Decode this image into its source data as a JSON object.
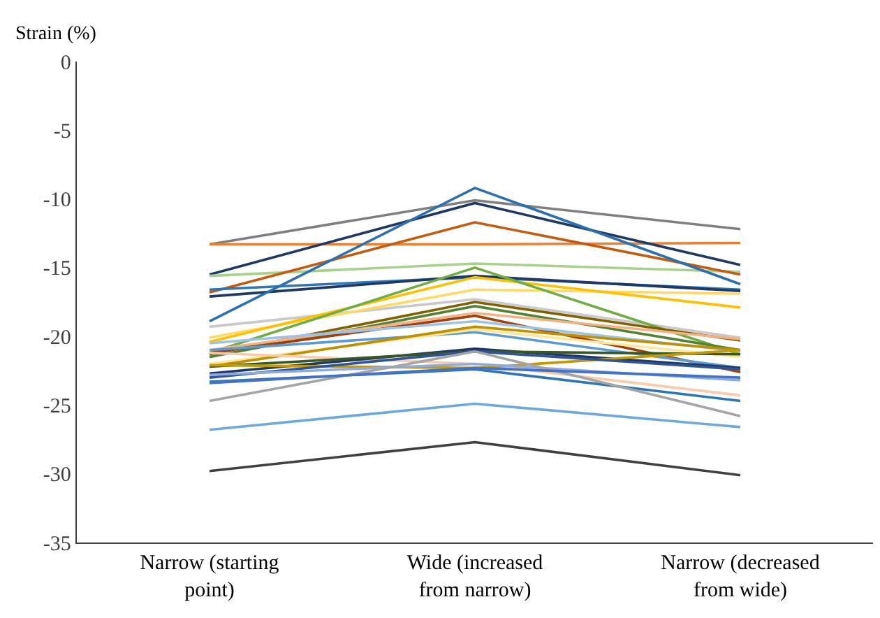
{
  "chart_data": {
    "type": "line",
    "ylabel": "Strain (%)",
    "categories": [
      "Narrow (starting point)",
      "Wide (increased from narrow)",
      "Narrow (decreased from wide)"
    ],
    "ylim": [
      -35,
      0
    ],
    "yticks": [
      0,
      -5,
      -10,
      -15,
      -20,
      -25,
      -30,
      -35
    ],
    "grid": false,
    "marker": "none",
    "line_style": "solid",
    "series": [
      {
        "color": "#7f7f7f",
        "values": [
          -13.3,
          -10.1,
          -12.2
        ]
      },
      {
        "color": "#ed7d31",
        "values": [
          -13.3,
          -13.3,
          -13.2
        ]
      },
      {
        "color": "#1f3864",
        "values": [
          -15.5,
          -10.3,
          -14.8
        ]
      },
      {
        "color": "#a9d18e",
        "values": [
          -15.6,
          -14.7,
          -15.3
        ]
      },
      {
        "color": "#c55a11",
        "values": [
          -16.8,
          -11.7,
          -15.5
        ]
      },
      {
        "color": "#2e75b6",
        "values": [
          -16.6,
          -15.7,
          -16.6
        ]
      },
      {
        "color": "#203864",
        "values": [
          -17.1,
          -15.6,
          -16.7
        ]
      },
      {
        "color": "#2e6fad",
        "values": [
          -18.9,
          -9.2,
          -16.2
        ]
      },
      {
        "color": "#c9c9c9",
        "values": [
          -19.3,
          -17.3,
          -20.1
        ]
      },
      {
        "color": "#ffd966",
        "values": [
          -20.1,
          -16.6,
          -16.9
        ]
      },
      {
        "color": "#ffc000",
        "values": [
          -20.4,
          -15.7,
          -17.9
        ]
      },
      {
        "color": "#70ad47",
        "values": [
          -21.2,
          -15.0,
          -21.3
        ]
      },
      {
        "color": "#806000",
        "values": [
          -21.3,
          -17.5,
          -20.3
        ]
      },
      {
        "color": "#548235",
        "values": [
          -21.5,
          -17.8,
          -21.0
        ]
      },
      {
        "color": "#a0410d",
        "values": [
          -21.2,
          -18.5,
          -22.6
        ]
      },
      {
        "color": "#f4b183",
        "values": [
          -21.0,
          -18.3,
          -20.2
        ]
      },
      {
        "color": "#9dc3e6",
        "values": [
          -20.5,
          -18.9,
          -21.1
        ]
      },
      {
        "color": "#5b9bd5",
        "values": [
          -21.0,
          -19.7,
          -22.3
        ]
      },
      {
        "color": "#ffe699",
        "values": [
          -22.0,
          -19.5,
          -21.5
        ]
      },
      {
        "color": "#bf9000",
        "values": [
          -22.2,
          -19.3,
          -21.0
        ]
      },
      {
        "color": "#f8cbad",
        "values": [
          -21.2,
          -22.0,
          -24.3
        ]
      },
      {
        "color": "#203864",
        "values": [
          -22.7,
          -20.9,
          -22.3
        ]
      },
      {
        "color": "#385723",
        "values": [
          -22.2,
          -21.1,
          -21.3
        ]
      },
      {
        "color": "#c49a00",
        "values": [
          -22.1,
          -22.3,
          -21.0
        ]
      },
      {
        "color": "#2f5597",
        "values": [
          -23.0,
          -21.1,
          -22.4
        ]
      },
      {
        "color": "#8faadc",
        "values": [
          -22.8,
          -22.0,
          -23.2
        ]
      },
      {
        "color": "#2e75b6",
        "values": [
          -23.3,
          -22.4,
          -24.7
        ]
      },
      {
        "color": "#a5a5a5",
        "values": [
          -24.7,
          -21.1,
          -25.8
        ]
      },
      {
        "color": "#4472c4",
        "values": [
          -23.4,
          -22.3,
          -23.0
        ]
      },
      {
        "color": "#6fa8dc",
        "values": [
          -26.8,
          -24.9,
          -26.6
        ]
      },
      {
        "color": "#404040",
        "values": [
          -29.8,
          -27.7,
          -30.1
        ]
      }
    ]
  }
}
